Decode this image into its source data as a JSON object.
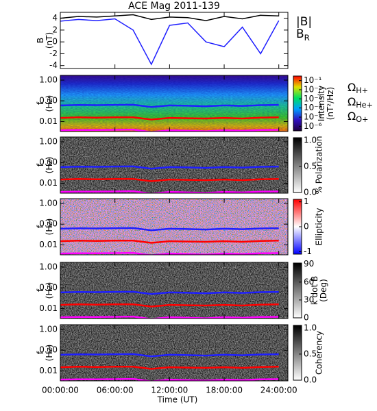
{
  "chart_data": [
    {
      "type": "line",
      "title": "ACE Mag 2011-139",
      "ylabel": [
        "B",
        "(nT)"
      ],
      "x": [
        0,
        2,
        4,
        6,
        8,
        10,
        12,
        14,
        16,
        18,
        20,
        22,
        24
      ],
      "series": [
        {
          "name": "|B|",
          "color": "#000000",
          "values": [
            4,
            4.3,
            4.2,
            4.4,
            4.6,
            3.8,
            4.2,
            4.1,
            3.6,
            4.3,
            3.9,
            4.5,
            4.4
          ]
        },
        {
          "name": "BR",
          "color": "#1f1fff",
          "values": [
            3.5,
            3.8,
            3.6,
            3.9,
            2,
            -3.8,
            2.8,
            3.2,
            0,
            -0.8,
            2.5,
            -2,
            3.6
          ]
        }
      ],
      "ylim": [
        -4.5,
        5
      ],
      "yticks": [
        -4,
        -2,
        0,
        2,
        4
      ]
    },
    {
      "type": "spectrogram",
      "ylabel": [
        "f",
        "(Hz)"
      ],
      "log": true,
      "colormap": "rainbow",
      "x": [
        0,
        2,
        4,
        6,
        8,
        10,
        12,
        14,
        16,
        18,
        20,
        22,
        24
      ],
      "series": [
        {
          "name": "ΩH+",
          "color": "#1f1fff",
          "values": [
            0.06,
            0.063,
            0.062,
            0.064,
            0.065,
            0.05,
            0.06,
            0.058,
            0.055,
            0.06,
            0.057,
            0.062,
            0.064
          ]
        },
        {
          "name": "ΩHe+",
          "color": "#ff0000",
          "values": [
            0.015,
            0.016,
            0.0155,
            0.016,
            0.016,
            0.0125,
            0.015,
            0.0145,
            0.014,
            0.015,
            0.014,
            0.0155,
            0.016
          ]
        },
        {
          "name": "ΩO+",
          "color": "#ff00ff",
          "values": [
            0.0038,
            0.0039,
            0.0039,
            0.004,
            0.0041,
            0.0031,
            0.0038,
            0.0036,
            0.0034,
            0.0038,
            0.0036,
            0.0039,
            0.004
          ]
        }
      ],
      "ylim": [
        0.0033,
        1.7
      ],
      "yticks": [
        {
          "value": 1,
          "label": "1.00"
        },
        {
          "value": 0.1,
          "label": "0.10"
        },
        {
          "value": 0.01,
          "label": "0.01"
        }
      ],
      "clabel": [
        "Intensity",
        "(nT²/Hz)"
      ],
      "clim": [
        -6.5,
        -0.5
      ],
      "cticks": [
        {
          "value": -1,
          "label": "10⁻¹"
        },
        {
          "value": -2,
          "label": "10⁻²"
        },
        {
          "value": -3,
          "label": "10⁻³"
        },
        {
          "value": -4,
          "label": "10⁻⁴"
        },
        {
          "value": -5,
          "label": "10⁻⁵"
        },
        {
          "value": -6,
          "label": "10⁻⁶"
        }
      ]
    },
    {
      "type": "spectrogram",
      "ylabel": [
        "f",
        "(Hz)"
      ],
      "log": true,
      "colormap": "gray",
      "ylim": [
        0.0033,
        1.7
      ],
      "yticks": [
        {
          "value": 1,
          "label": "1.00"
        },
        {
          "value": 0.1,
          "label": "0.10"
        },
        {
          "value": 0.01,
          "label": "0.01"
        }
      ],
      "clabel": [
        "% Polarization"
      ],
      "clim": [
        0,
        1.05
      ],
      "cticks": [
        {
          "value": 0,
          "label": "0.0"
        },
        {
          "value": 0.5,
          "label": "0.5"
        },
        {
          "value": 1,
          "label": "1.0"
        }
      ]
    },
    {
      "type": "spectrogram",
      "ylabel": [
        "f",
        "(Hz)"
      ],
      "log": true,
      "colormap": "bwr",
      "ylim": [
        0.0033,
        1.7
      ],
      "yticks": [
        {
          "value": 1,
          "label": "1.00"
        },
        {
          "value": 0.1,
          "label": "0.10"
        },
        {
          "value": 0.01,
          "label": "0.01"
        }
      ],
      "clabel": [
        "Ellipticity"
      ],
      "clim": [
        -1.1,
        1.1
      ],
      "cticks": [
        -1,
        0,
        1
      ]
    },
    {
      "type": "spectrogram",
      "ylabel": [
        "f",
        "(Hz)"
      ],
      "log": true,
      "colormap": "gray",
      "ylim": [
        0.0033,
        1.7
      ],
      "yticks": [
        {
          "value": 1,
          "label": "1.00"
        },
        {
          "value": 0.1,
          "label": "0.10"
        },
        {
          "value": 0.01,
          "label": "0.01"
        }
      ],
      "clabel": [
        "k dot B",
        "(Deg)"
      ],
      "clim": [
        0,
        92
      ],
      "cticks": [
        0,
        30,
        60,
        90
      ]
    },
    {
      "type": "spectrogram",
      "ylabel": [
        "f",
        "(Hz)"
      ],
      "log": true,
      "colormap": "gray",
      "ylim": [
        0.0033,
        1.7
      ],
      "yticks": [
        {
          "value": 1,
          "label": "1.00"
        },
        {
          "value": 0.1,
          "label": "0.10"
        },
        {
          "value": 0.01,
          "label": "0.01"
        }
      ],
      "clabel": [
        "Coherency"
      ],
      "clim": [
        0,
        1.05
      ],
      "cticks": [
        {
          "value": 0,
          "label": "0.0"
        },
        {
          "value": 0.5,
          "label": "0.5"
        },
        {
          "value": 1,
          "label": "1.0"
        }
      ],
      "xlabel": "Time (UT)",
      "xlim": [
        0,
        25
      ],
      "xticks": [
        {
          "value": 0,
          "label": "00:00:00"
        },
        {
          "value": 6,
          "label": "06:00:00"
        },
        {
          "value": 12,
          "label": "12:00:00"
        },
        {
          "value": 18,
          "label": "18:00:00"
        },
        {
          "value": 24,
          "label": "24:00:00"
        }
      ]
    }
  ]
}
